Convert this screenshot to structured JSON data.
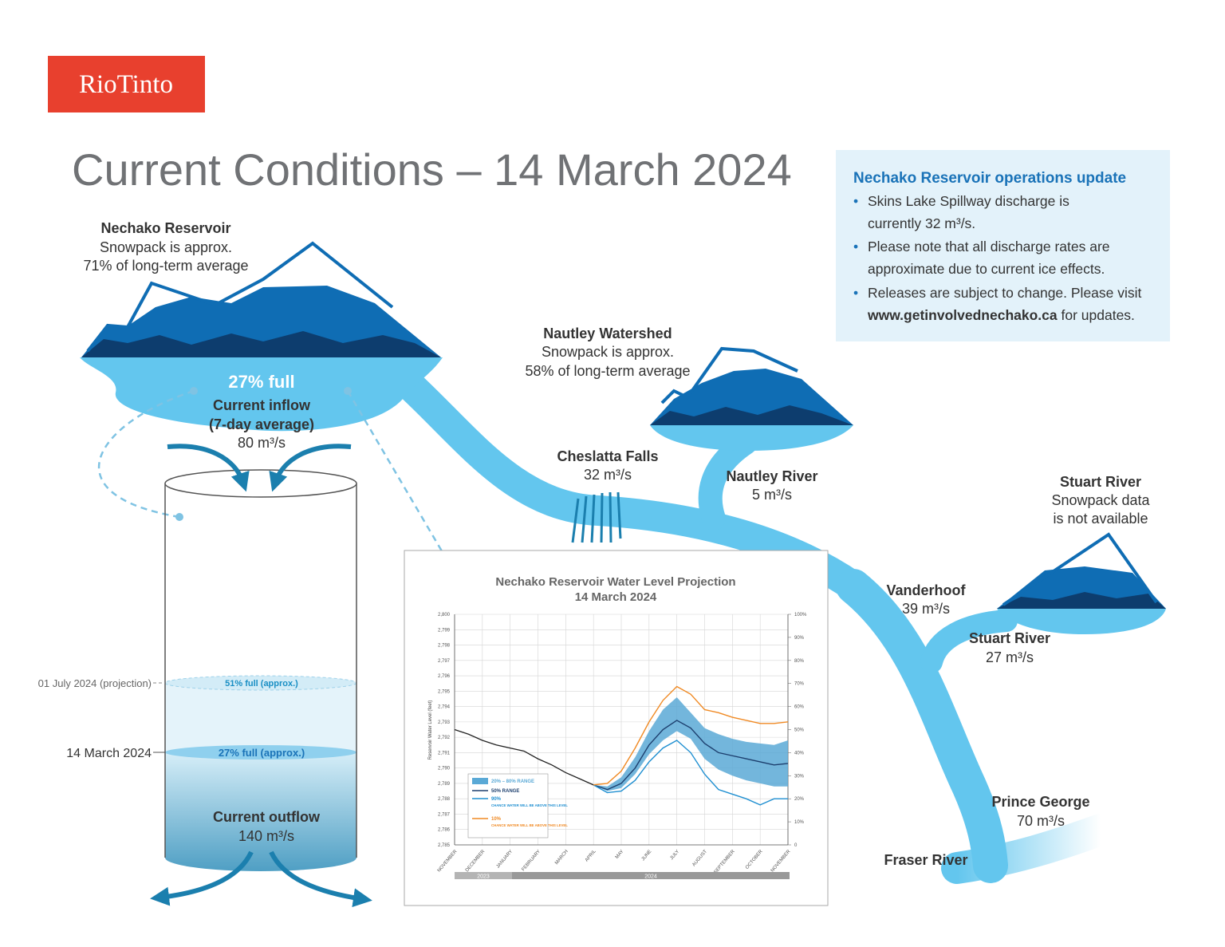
{
  "logo": "RioTinto",
  "title": "Current Conditions – 14 March 2024",
  "update_box": {
    "heading": "Nechako Reservoir operations update",
    "bullets": [
      [
        "Skins Lake Spillway discharge is",
        "currently 32 m³/s."
      ],
      [
        "Please note that all discharge rates are",
        "approximate due to current ice effects."
      ],
      [
        "Releases are subject to change. Please visit",
        "www.getinvolvednechako.ca",
        "for updates."
      ]
    ]
  },
  "nechako_reservoir": {
    "name": "Nechako Reservoir",
    "snowpack": "Snowpack is approx.",
    "snowpack_pct": "71% of long-term average",
    "fill": "27% full",
    "inflow_label": "Current inflow",
    "inflow_period": "(7-day average)",
    "inflow": "80 m³/s"
  },
  "nautley_watershed": {
    "name": "Nautley Watershed",
    "snowpack": "Snowpack is approx.",
    "snowpack_pct": "58% of long-term average"
  },
  "stuart_watershed": {
    "name": "Stuart River",
    "line1": "Snowpack data",
    "line2": "is not available"
  },
  "flows": [
    {
      "name": "Cheslatta Falls",
      "value": "32 m³/s"
    },
    {
      "name": "Nautley River",
      "value": "5 m³/s"
    },
    {
      "name": "Vanderhoof",
      "value": "39 m³/s"
    },
    {
      "name": "Stuart River",
      "value": "27 m³/s"
    },
    {
      "name": "Prince George",
      "value": "70 m³/s"
    }
  ],
  "fraser": "Fraser River",
  "cylinder": {
    "projection_date": "01 July 2024 (projection)",
    "projection_fill": "51% full (approx.)",
    "current_date": "14 March 2024",
    "current_fill": "27% full (approx.)",
    "outflow_label": "Current outflow",
    "outflow": "140 m³/s"
  },
  "chart_data": {
    "type": "line",
    "title": "Nechako Reservoir Water Level Projection",
    "subtitle": "14 March 2024",
    "ylabel": "Reservoir Water Level (feet)",
    "categories": [
      "NOVEMBER",
      null,
      "DECEMBER",
      null,
      "JANUARY",
      null,
      "FEBRUARY",
      null,
      "MARCH",
      null,
      "APRIL",
      null,
      "MAY",
      null,
      "JUNE",
      null,
      "JULY",
      null,
      "AUGUST",
      null,
      "SEPTEMBER",
      null,
      "OCTOBER",
      null,
      "NOVEMBER"
    ],
    "years": [
      "2023",
      "2024"
    ],
    "ylim": [
      2785,
      2800
    ],
    "yticks": [
      {
        "value": 2785,
        "label": "2,785"
      },
      {
        "value": 2786,
        "label": "2,786"
      },
      {
        "value": 2787,
        "label": "2,787"
      },
      {
        "value": 2788,
        "label": "2,788"
      },
      {
        "value": 2789,
        "label": "2,789"
      },
      {
        "value": 2790,
        "label": "2,790"
      },
      {
        "value": 2791,
        "label": "2,791"
      },
      {
        "value": 2792,
        "label": "2,792"
      },
      {
        "value": 2793,
        "label": "2,793"
      },
      {
        "value": 2794,
        "label": "2,794"
      },
      {
        "value": 2795,
        "label": "2,795"
      },
      {
        "value": 2796,
        "label": "2,796"
      },
      {
        "value": 2797,
        "label": "2,797"
      },
      {
        "value": 2798,
        "label": "2,798"
      },
      {
        "value": 2799,
        "label": "2,799"
      },
      {
        "value": 2800,
        "label": "2,800"
      }
    ],
    "y2lim": [
      0,
      100
    ],
    "y2ticks": [
      0,
      {
        "value": 10,
        "label": "10%"
      },
      {
        "value": 20,
        "label": "20%"
      },
      {
        "value": 30,
        "label": "30%"
      },
      {
        "value": 40,
        "label": "40%"
      },
      {
        "value": 50,
        "label": "50%"
      },
      {
        "value": 60,
        "label": "60%"
      },
      {
        "value": 70,
        "label": "70%"
      },
      {
        "value": 80,
        "label": "80%"
      },
      {
        "value": 90,
        "label": "90%"
      },
      {
        "value": 100,
        "label": "100%"
      }
    ],
    "grid": true,
    "band": {
      "name": "20% – 80% RANGE",
      "color": "#5aa9d6",
      "low": [
        null,
        null,
        null,
        null,
        null,
        null,
        null,
        null,
        null,
        null,
        2788.9,
        2788.5,
        2788.7,
        2789.6,
        2790.9,
        2791.8,
        2792.4,
        2791.9,
        2790.6,
        2789.9,
        2789.5,
        2789.2,
        2789.0,
        2788.8,
        2788.8
      ],
      "high": [
        null,
        null,
        null,
        null,
        null,
        null,
        null,
        null,
        null,
        null,
        2788.9,
        2788.8,
        2789.4,
        2790.7,
        2792.4,
        2793.8,
        2794.6,
        2793.6,
        2792.6,
        2792.2,
        2791.9,
        2791.7,
        2791.6,
        2791.5,
        2791.8
      ]
    },
    "series": [
      {
        "color": "#222222",
        "values": [
          2792.5,
          2792.2,
          2791.8,
          2791.5,
          2791.3,
          2791.1,
          2790.6,
          2790.2,
          2789.7,
          2789.3,
          2788.9,
          null,
          null,
          null,
          null,
          null,
          null,
          null,
          null,
          null,
          null,
          null,
          null,
          null,
          null
        ]
      },
      {
        "name": "50% RANGE",
        "color": "#1d3f6e",
        "values": [
          null,
          null,
          null,
          null,
          null,
          null,
          null,
          null,
          null,
          null,
          2788.9,
          2788.6,
          2789.0,
          2790.0,
          2791.5,
          2792.5,
          2793.1,
          2792.6,
          2791.6,
          2791.0,
          2790.8,
          2790.6,
          2790.4,
          2790.2,
          2790.3
        ]
      },
      {
        "name": "90%",
        "note": "CHANCE WATER WILL BE ABOVE THIS LEVEL",
        "color": "#1f8fd1",
        "values": [
          null,
          null,
          null,
          null,
          null,
          null,
          null,
          null,
          null,
          null,
          2788.9,
          2788.4,
          2788.5,
          2789.2,
          2790.4,
          2791.3,
          2791.8,
          2791.0,
          2789.6,
          2788.6,
          2788.3,
          2788.0,
          2787.6,
          2788.0,
          2788.0
        ]
      },
      {
        "name": "10%",
        "note": "CHANCE WATER WILL BE ABOVE THIS LEVEL",
        "color": "#f08a24",
        "values": [
          null,
          null,
          null,
          null,
          null,
          null,
          null,
          null,
          null,
          null,
          2788.9,
          2789.0,
          2789.8,
          2791.3,
          2793.0,
          2794.4,
          2795.3,
          2794.8,
          2793.8,
          2793.6,
          2793.3,
          2793.1,
          2792.9,
          2792.9,
          2793.0
        ]
      }
    ]
  }
}
